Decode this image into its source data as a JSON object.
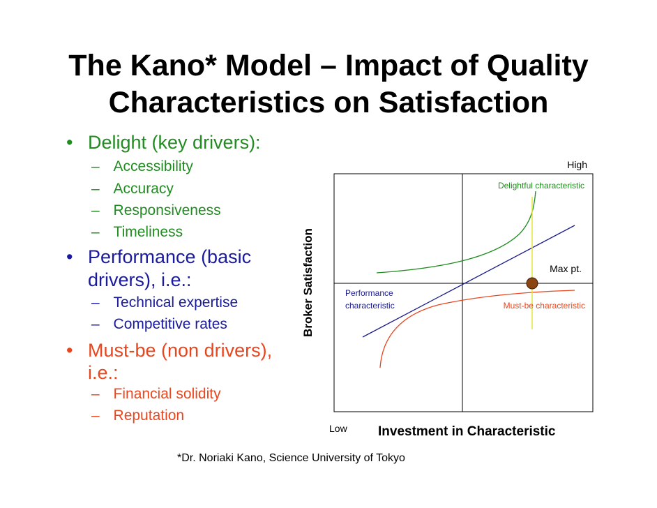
{
  "title_line1": "The Kano* Model – Impact of Quality",
  "title_line2": "Characteristics on Satisfaction",
  "bullet_dot": "•",
  "dash": "–",
  "delight": {
    "heading": "Delight (key drivers):",
    "items": [
      "Accessibility",
      "Accuracy",
      "Responsiveness",
      "Timeliness"
    ],
    "color": "#228b22"
  },
  "performance": {
    "heading_line1": "Performance (basic",
    "heading_line2": "drivers), i.e.:",
    "items": [
      "Technical expertise",
      "Competitive rates"
    ],
    "color": "#1a1a9c"
  },
  "mustbe": {
    "heading_line1": "Must-be (non drivers),",
    "heading_line2": "i.e.:",
    "items": [
      "Financial solidity",
      "Reputation"
    ],
    "color": "#e8461e"
  },
  "footnote": "*Dr. Noriaki Kano, Science University of Tokyo",
  "chart": {
    "y_axis_label": "Broker Satisfaction",
    "x_axis_label": "Investment in Characteristic",
    "high_label": "High",
    "low_label": "Low",
    "delightful_label": "Delightful characteristic",
    "performance_label_line1": "Performance",
    "performance_label_line2": "characteristic",
    "mustbe_label": "Must-be characteristic",
    "max_label": "Max pt.",
    "colors": {
      "delightful": "#1e8c1e",
      "performance": "#1a1a8c",
      "mustbe": "#e8461e",
      "max_line": "#e6e63c",
      "max_point": "#8b4513"
    }
  }
}
